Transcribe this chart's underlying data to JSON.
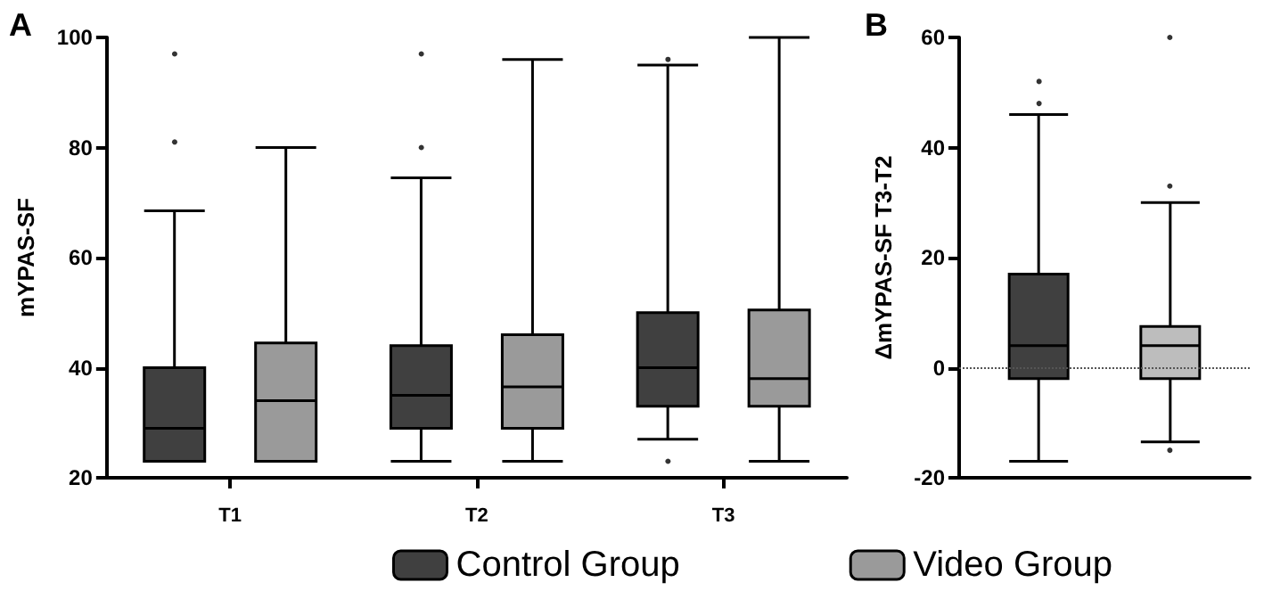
{
  "chart_data": [
    {
      "type": "box",
      "title": "A",
      "ylabel": "mYPAS-SF",
      "categories": [
        "T1",
        "T2",
        "T3"
      ],
      "ylim": [
        20,
        100
      ],
      "yticks": [
        20,
        40,
        60,
        80,
        100
      ],
      "grid": false,
      "legend": "bottom",
      "series": [
        {
          "name": "Control Group",
          "color": "#404040",
          "boxes": [
            {
              "low": 23,
              "q1": 23,
              "median": 29,
              "q3": 40,
              "high": 68.5,
              "outliers": [
                81,
                97
              ]
            },
            {
              "low": 23,
              "q1": 29,
              "median": 35,
              "q3": 44,
              "high": 74.5,
              "outliers": [
                80,
                97
              ]
            },
            {
              "low": 27,
              "q1": 33,
              "median": 40,
              "q3": 50,
              "high": 95,
              "outliers": [
                23,
                96
              ]
            }
          ]
        },
        {
          "name": "Video Group",
          "color": "#9a9a9a",
          "boxes": [
            {
              "low": 23,
              "q1": 23,
              "median": 34,
              "q3": 44.5,
              "high": 80
            },
            {
              "low": 23,
              "q1": 29,
              "median": 36.5,
              "q3": 46,
              "high": 96
            },
            {
              "low": 23,
              "q1": 33,
              "median": 38,
              "q3": 50.5,
              "high": 100
            }
          ]
        }
      ]
    },
    {
      "type": "box",
      "title": "B",
      "ylabel": "ΔmYPAS-SF T3-T2",
      "categories": [
        null
      ],
      "ylim": [
        -20,
        60
      ],
      "yticks": [
        -20,
        0,
        20,
        40,
        60
      ],
      "grid": false,
      "tick_labels": "y",
      "ref_lines": [
        {
          "axis": "y",
          "value": 0,
          "line_style": "dotted",
          "color": "#555555"
        }
      ],
      "series": [
        {
          "color": "#404040",
          "boxes": [
            {
              "low": -17,
              "q1": -2,
              "median": 4,
              "q3": 17,
              "high": 46,
              "outliers": [
                48,
                52
              ]
            }
          ]
        },
        {
          "color": "#bdbdbd",
          "boxes": [
            {
              "low": -13.5,
              "q1": -2,
              "median": 4,
              "q3": 7.5,
              "high": 30,
              "outliers": [
                33,
                60,
                -15
              ]
            }
          ]
        }
      ]
    }
  ]
}
